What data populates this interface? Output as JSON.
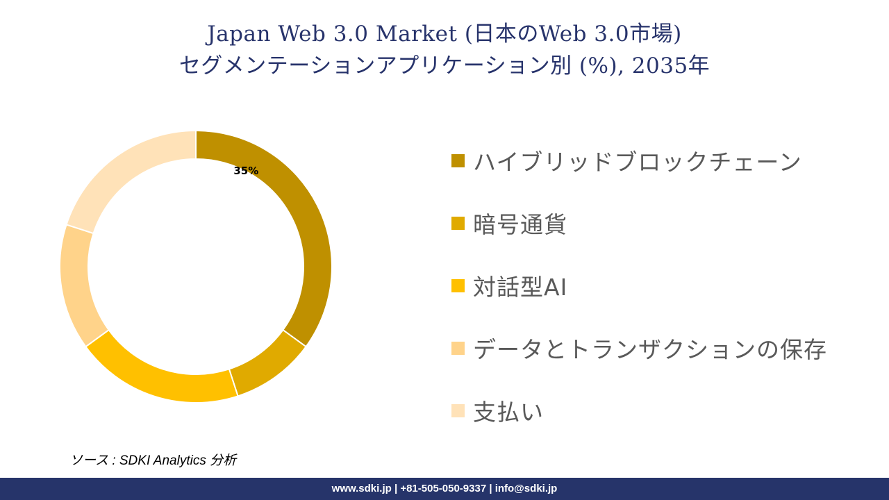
{
  "title": {
    "line1": "Japan Web 3.0 Market (日本のWeb 3.0市場)",
    "line2": "セグメンテーションアプリケーション別 (%), 2035年"
  },
  "chart_data": {
    "type": "pie",
    "donut": true,
    "categories": [
      "ハイブリッドブロックチェーン",
      "暗号通貨",
      "対話型AI",
      "データとトランザクションの保存",
      "支払い"
    ],
    "values": [
      35,
      10,
      20,
      15,
      20
    ],
    "data_labels": [
      "35%",
      "",
      "",
      "",
      ""
    ],
    "colors": [
      "#bf9000",
      "#e0aa00",
      "#ffc000",
      "#ffd38a",
      "#ffe2b8"
    ],
    "legend_position": "right"
  },
  "source": "ソース : SDKI Analytics  分析",
  "footer": "www.sdki.jp | +81-505-050-9337 | info@sdki.jp"
}
